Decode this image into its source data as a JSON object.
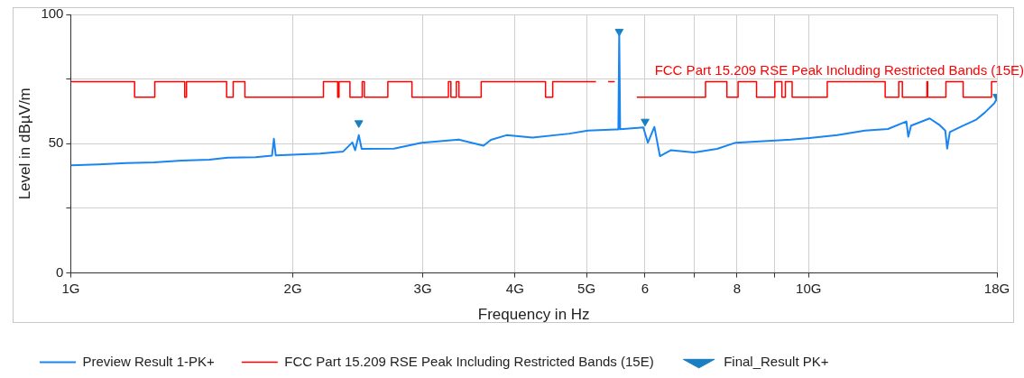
{
  "chart_data": {
    "type": "line",
    "xlabel": "Frequency in Hz",
    "ylabel": "Level in dBµV/m",
    "log": "x",
    "grid": true,
    "legend": "bottom",
    "xlim": [
      1,
      18
    ],
    "xticks": [
      {
        "value": 1,
        "label": "1G"
      },
      {
        "value": 2,
        "label": "2G"
      },
      {
        "value": 3,
        "label": "3G"
      },
      {
        "value": 4,
        "label": "4G"
      },
      {
        "value": 5,
        "label": "5G"
      },
      6,
      {
        "value": 7,
        "label": null
      },
      8,
      {
        "value": 9,
        "label": null
      },
      {
        "value": 10,
        "label": "10G"
      },
      {
        "value": 18,
        "label": "18G"
      }
    ],
    "ylim": [
      0,
      100
    ],
    "yticks": [
      0,
      {
        "value": 25,
        "label": null
      },
      50,
      {
        "value": 75,
        "label": null
      },
      100
    ],
    "annotations": [
      "FCC Part 15.209 RSE Peak Including Restricted Bands (15E)"
    ],
    "series": [
      {
        "name": "Preview Result 1-PK+",
        "color": "#1a85f0",
        "x": [
          1.0,
          1.09,
          1.189,
          1.296,
          1.413,
          1.541,
          1.632,
          1.78,
          1.874,
          1.885,
          1.896,
          1.997,
          2.177,
          2.34,
          2.408,
          2.429,
          2.457,
          2.479,
          2.742,
          2.989,
          3.356,
          3.626,
          3.711,
          3.896,
          4.225,
          4.741,
          5.022,
          5.475,
          5.523,
          5.538,
          5.554,
          5.97,
          6.056,
          6.18,
          6.288,
          6.51,
          6.998,
          7.516,
          7.963,
          8.684,
          9.467,
          10.03,
          10.94,
          11.92,
          12.81,
          13.57,
          13.65,
          13.77,
          14.59,
          15.02,
          15.32,
          15.41,
          15.54,
          16.14,
          16.85,
          17.34,
          17.85,
          18.0
        ],
        "values": [
          41.6,
          42.0,
          42.5,
          42.8,
          43.5,
          43.8,
          44.6,
          44.8,
          45.4,
          51.9,
          45.5,
          45.7,
          46.2,
          47.0,
          50.5,
          47.5,
          53.3,
          48.0,
          48.1,
          50.4,
          51.6,
          49.2,
          51.5,
          53.3,
          52.4,
          53.9,
          55.1,
          55.5,
          55.5,
          93.1,
          55.6,
          56.3,
          50.4,
          56.5,
          45.2,
          47.5,
          46.6,
          48.0,
          50.4,
          51.0,
          51.6,
          52.2,
          53.3,
          55.1,
          55.7,
          58.6,
          52.7,
          57.0,
          59.8,
          57.4,
          55.1,
          48.1,
          54.5,
          56.8,
          59.2,
          62.1,
          65.6,
          67.5
        ]
      },
      {
        "name": "FCC Part 15.209 RSE Peak Including Restricted Bands (15E)",
        "type": "step",
        "color": "#ff0000",
        "x": [
          1.0,
          1.2205,
          1.3,
          1.427,
          1.435,
          1.6265,
          1.66,
          1.7222,
          2.2,
          2.3,
          2.31,
          2.39,
          2.4835,
          2.5,
          2.69,
          2.9,
          3.25,
          3.275,
          3.332,
          3.358,
          3.6,
          4.4,
          4.5,
          5.15,
          null,
          5.35,
          5.46,
          null,
          5.85,
          7.25,
          7.75,
          8.025,
          8.5,
          9.0,
          9.2,
          9.3,
          9.5,
          10.6,
          12.7,
          13.25,
          13.4,
          14.47,
          14.5,
          15.35,
          16.2,
          17.7,
          18
        ],
        "values": [
          74,
          68,
          74,
          68,
          74,
          68,
          74,
          68,
          74,
          68,
          74,
          68,
          74,
          68,
          74,
          68,
          74,
          68,
          74,
          68,
          74,
          68,
          74,
          74,
          null,
          74,
          74,
          null,
          68,
          74,
          68,
          74,
          68,
          74,
          68,
          74,
          68,
          74,
          68,
          74,
          68,
          74,
          68,
          74,
          68,
          74,
          74
        ]
      },
      {
        "name": "Final_Result PK+",
        "type": "scatter",
        "marker": "triangle",
        "color": "#1a7fc0",
        "x": [
          2.457,
          5.538,
          6.004,
          18
        ],
        "values": [
          58.0,
          93.4,
          58.6,
          68.2
        ]
      }
    ]
  }
}
